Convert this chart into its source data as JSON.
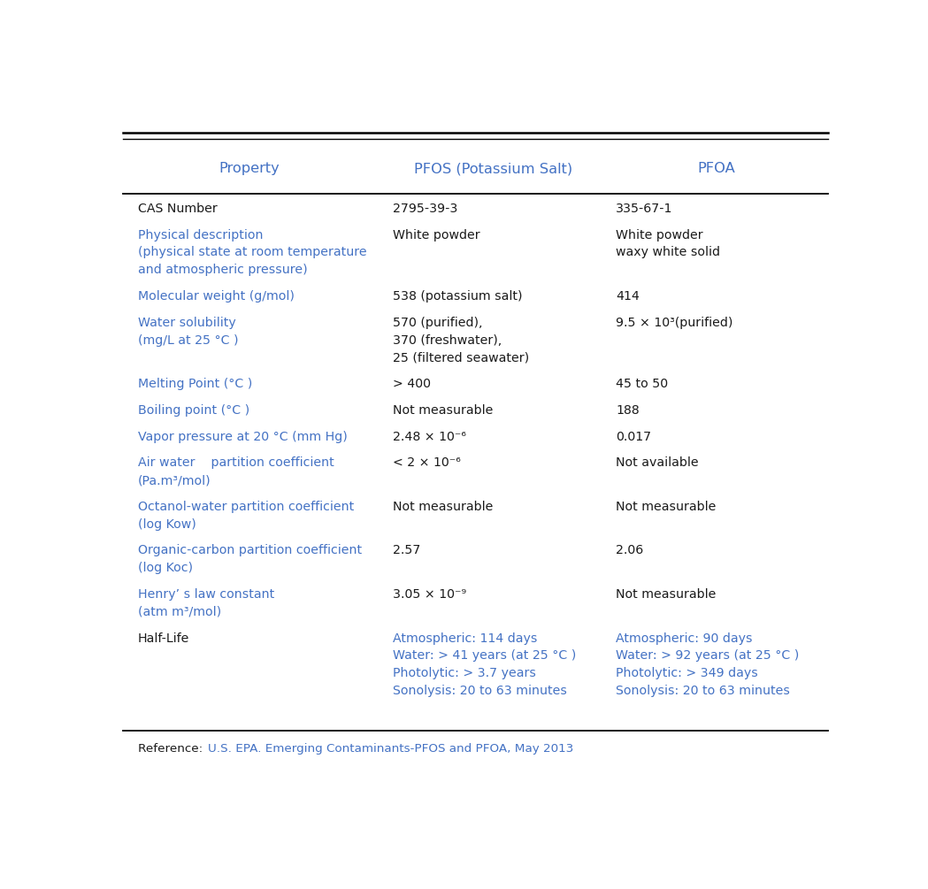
{
  "blue_color": "#4472c4",
  "black_color": "#1a1a1a",
  "bg_color": "#ffffff",
  "header": [
    "Property",
    "PFOS (Potassium Salt)",
    "PFOA"
  ],
  "reference_prefix": "Reference: ",
  "reference_body": "U.S. EPA. Emerging Contaminants-PFOS and PFOA, May 2013",
  "rows": [
    {
      "property": [
        "CAS Number"
      ],
      "pfos": [
        "2795-39-3"
      ],
      "pfoa": [
        "335-67-1"
      ],
      "prop_color": "black",
      "pfos_color": "black",
      "pfoa_color": "black"
    },
    {
      "property": [
        "Physical description",
        "(physical state at room temperature",
        "and atmospheric pressure)"
      ],
      "pfos": [
        "White powder"
      ],
      "pfoa": [
        "White powder",
        "waxy white solid"
      ],
      "prop_color": "blue",
      "pfos_color": "black",
      "pfoa_color": "black"
    },
    {
      "property": [
        "Molecular weight (g/mol)"
      ],
      "pfos": [
        "538 (potassium salt)"
      ],
      "pfoa": [
        "414"
      ],
      "prop_color": "blue",
      "pfos_color": "black",
      "pfoa_color": "black"
    },
    {
      "property": [
        "Water solubility",
        "(mg/L at 25 °C )"
      ],
      "pfos": [
        "570 (purified),",
        "370 (freshwater),",
        "25 (filtered seawater)"
      ],
      "pfoa": [
        "9.5 × 10³(purified)"
      ],
      "prop_color": "blue",
      "pfos_color": "black",
      "pfoa_color": "black"
    },
    {
      "property": [
        "Melting Point (°C )"
      ],
      "pfos": [
        "> 400"
      ],
      "pfoa": [
        "45 to 50"
      ],
      "prop_color": "blue",
      "pfos_color": "black",
      "pfoa_color": "black"
    },
    {
      "property": [
        "Boiling point (°C )"
      ],
      "pfos": [
        "Not measurable"
      ],
      "pfoa": [
        "188"
      ],
      "prop_color": "blue",
      "pfos_color": "black",
      "pfoa_color": "black"
    },
    {
      "property": [
        "Vapor pressure at 20 °C (mm Hg)"
      ],
      "pfos": [
        "2.48 × 10⁻⁶"
      ],
      "pfoa": [
        "0.017"
      ],
      "prop_color": "blue",
      "pfos_color": "black",
      "pfoa_color": "black"
    },
    {
      "property": [
        "Air water    partition coefficient",
        "(Pa.m³/mol)"
      ],
      "pfos": [
        "< 2 × 10⁻⁶"
      ],
      "pfoa": [
        "Not available"
      ],
      "prop_color": "blue",
      "pfos_color": "black",
      "pfoa_color": "black"
    },
    {
      "property": [
        "Octanol-water partition coefficient",
        "(log Kow)"
      ],
      "pfos": [
        "Not measurable"
      ],
      "pfoa": [
        "Not measurable"
      ],
      "prop_color": "blue",
      "pfos_color": "black",
      "pfoa_color": "black"
    },
    {
      "property": [
        "Organic-carbon partition coefficient",
        "(log Koc)"
      ],
      "pfos": [
        "2.57"
      ],
      "pfoa": [
        "2.06"
      ],
      "prop_color": "blue",
      "pfos_color": "black",
      "pfoa_color": "black"
    },
    {
      "property": [
        "Henry’ s law constant",
        "(atm m³/mol)"
      ],
      "pfos": [
        "3.05 × 10⁻⁹"
      ],
      "pfoa": [
        "Not measurable"
      ],
      "prop_color": "blue",
      "pfos_color": "black",
      "pfoa_color": "black"
    },
    {
      "property": [
        "Half-Life"
      ],
      "pfos": [
        "Atmospheric: 114 days",
        "Water: > 41 years (at 25 °C )",
        "Photolytic: > 3.7 years",
        "Sonolysis: 20 to 63 minutes"
      ],
      "pfoa": [
        "Atmospheric: 90 days",
        "Water: > 92 years (at 25 °C )",
        "Photolytic: > 349 days",
        "Sonolysis: 20 to 63 minutes"
      ],
      "prop_color": "black",
      "pfos_color": "blue",
      "pfoa_color": "blue"
    }
  ]
}
